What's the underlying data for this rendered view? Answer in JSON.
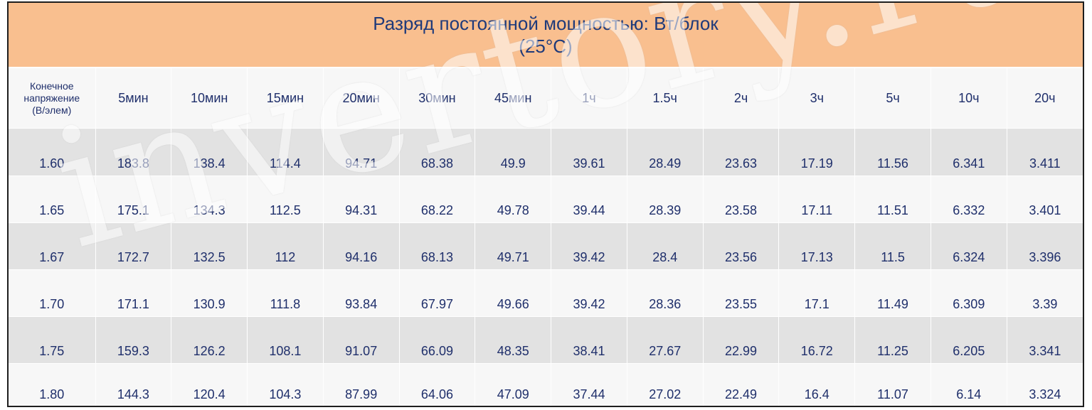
{
  "title": {
    "line1": "Разряд постоянной мощностью: Вт/блок",
    "line2": "(25°C)"
  },
  "header": {
    "first_col": [
      "Конечное",
      "напряжение",
      "(В/элем)"
    ],
    "columns": [
      "5мин",
      "10мин",
      "15мин",
      "20мин",
      "30мин",
      "45мин",
      "1ч",
      "1.5ч",
      "2ч",
      "3ч",
      "5ч",
      "10ч",
      "20ч"
    ]
  },
  "rows": [
    {
      "voltage": "1.60",
      "values": [
        "183.8",
        "138.4",
        "114.4",
        "94.71",
        "68.38",
        "49.9",
        "39.61",
        "28.49",
        "23.63",
        "17.19",
        "11.56",
        "6.341",
        "3.411"
      ]
    },
    {
      "voltage": "1.65",
      "values": [
        "175.1",
        "134.3",
        "112.5",
        "94.31",
        "68.22",
        "49.78",
        "39.44",
        "28.39",
        "23.58",
        "17.11",
        "11.51",
        "6.332",
        "3.401"
      ]
    },
    {
      "voltage": "1.67",
      "values": [
        "172.7",
        "132.5",
        "112",
        "94.16",
        "68.13",
        "49.71",
        "39.42",
        "28.4",
        "23.56",
        "17.13",
        "11.5",
        "6.324",
        "3.396"
      ]
    },
    {
      "voltage": "1.70",
      "values": [
        "171.1",
        "130.9",
        "111.8",
        "93.84",
        "67.97",
        "49.66",
        "39.42",
        "28.36",
        "23.55",
        "17.1",
        "11.49",
        "6.309",
        "3.39"
      ]
    },
    {
      "voltage": "1.75",
      "values": [
        "159.3",
        "126.2",
        "108.1",
        "91.07",
        "66.09",
        "48.35",
        "38.41",
        "27.67",
        "22.99",
        "16.72",
        "11.25",
        "6.205",
        "3.341"
      ]
    },
    {
      "voltage": "1.80",
      "values": [
        "144.3",
        "120.4",
        "104.3",
        "87.99",
        "64.06",
        "47.09",
        "37.44",
        "27.02",
        "22.49",
        "16.4",
        "11.07",
        "6.14",
        "3.324"
      ]
    }
  ],
  "watermark": "invertory.ru",
  "colors": {
    "title_bg": "#f9bf8f",
    "row_shade": "#e2e2e2",
    "row_plain": "#f7f7f7",
    "text": "#1f2f6b"
  }
}
